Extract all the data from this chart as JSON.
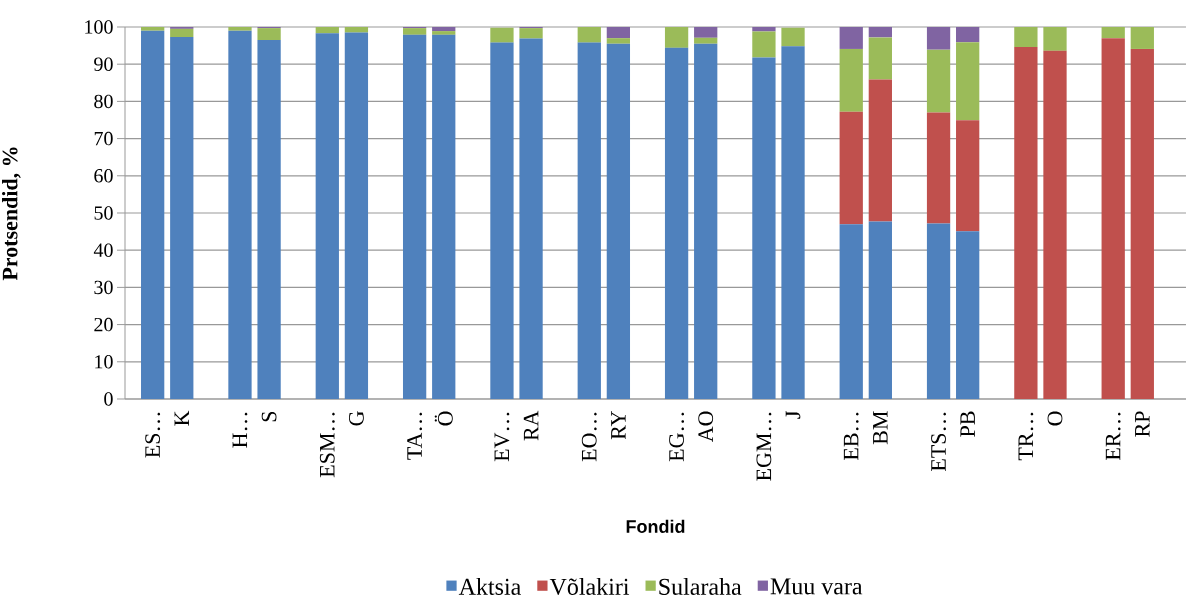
{
  "chart_data": {
    "type": "bar",
    "stacked": true,
    "xlabel": "Fondid",
    "ylabel": "Protsendid, %",
    "categories": [
      "ES…",
      "K",
      null,
      "H…",
      "S",
      null,
      "ESM…",
      "G",
      null,
      "TA…",
      "Ö",
      null,
      "EV…",
      "RA",
      null,
      "EO…",
      "RY",
      null,
      "EG…",
      "AO",
      null,
      "EGM…",
      "J",
      null,
      "EB…",
      "BM",
      null,
      "ETS…",
      "PB",
      null,
      "TR…",
      "O",
      null,
      "ER…",
      "RP"
    ],
    "series": [
      {
        "name": "Aktsia",
        "color": "#4f81bd",
        "values": [
          99,
          97.3,
          null,
          99,
          96.5,
          null,
          98.3,
          98.5,
          null,
          97.9,
          97.9,
          null,
          95.8,
          96.9,
          null,
          95.8,
          95.5,
          null,
          94.4,
          95.5,
          null,
          91.8,
          94.8,
          null,
          47,
          47.7,
          null,
          47.2,
          45.1,
          null,
          0,
          0,
          null,
          0,
          0
        ]
      },
      {
        "name": "Võlakiri",
        "color": "#c0504d",
        "values": [
          0,
          0,
          null,
          0,
          0,
          null,
          0,
          0,
          null,
          0,
          0,
          null,
          0,
          0,
          null,
          0,
          0,
          null,
          0,
          0,
          null,
          0,
          0,
          null,
          30.2,
          38.2,
          null,
          29.8,
          29.8,
          null,
          94.6,
          93.6,
          null,
          97,
          94.1
        ]
      },
      {
        "name": "Sularaha",
        "color": "#9bbb59",
        "values": [
          1,
          2.2,
          null,
          1,
          3.2,
          null,
          1.7,
          1.5,
          null,
          1.8,
          1,
          null,
          4,
          2.8,
          null,
          4.2,
          1.5,
          null,
          5.6,
          1.6,
          null,
          7,
          5,
          null,
          16.9,
          11.3,
          null,
          16.9,
          21,
          null,
          5.4,
          6.4,
          null,
          3,
          5.9
        ]
      },
      {
        "name": "Muu vara",
        "color": "#8064a2",
        "values": [
          0,
          0.5,
          null,
          0,
          0.3,
          null,
          0,
          0,
          null,
          0.3,
          1.1,
          null,
          null,
          0.3,
          null,
          0,
          3,
          null,
          0,
          2.9,
          null,
          1.2,
          null,
          null,
          5.9,
          2.8,
          null,
          6.1,
          4.1,
          null,
          0,
          0,
          null,
          0,
          0
        ]
      }
    ],
    "ylim": [
      0,
      100
    ],
    "yticks": [
      0,
      10,
      20,
      30,
      40,
      50,
      60,
      70,
      80,
      90,
      100
    ],
    "grid": "y",
    "legend": "bottom"
  }
}
